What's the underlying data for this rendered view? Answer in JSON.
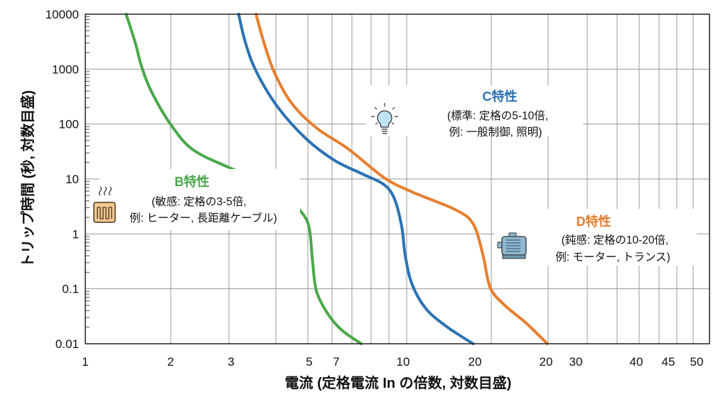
{
  "chart_data": {
    "type": "line",
    "xlabel": "電流 (定格電流 In の倍数, 対数目盛)",
    "ylabel": "トリップ時間 (秒, 対数目盛)",
    "x_scale": "log",
    "y_scale": "log",
    "ylim": [
      0.01,
      10000
    ],
    "xlim": [
      1,
      87
    ],
    "grid": true,
    "x_tick_labels": [
      "1",
      "2",
      "3",
      "5",
      "7",
      "10",
      "20",
      "20",
      "30",
      "40",
      "45",
      "50"
    ],
    "y_tick_labels": [
      "10000",
      "1000",
      "100",
      "10",
      "1",
      "0.1",
      "0.01"
    ],
    "y_ticks": [
      10000,
      1000,
      100,
      10,
      1,
      0.1,
      0.01
    ],
    "series": [
      {
        "name": "B特性",
        "color": "#4aa84a",
        "x": [
          1.34,
          1.43,
          1.5,
          1.61,
          1.84,
          2.15,
          2.77,
          3.57,
          4.16,
          4.73,
          4.98,
          5.1,
          5.24,
          5.65,
          6.26,
          7.22
        ],
        "y": [
          10000,
          3040,
          1070,
          380,
          100,
          35,
          16.6,
          9.1,
          5.0,
          2.4,
          1.24,
          0.3,
          0.091,
          0.037,
          0.018,
          0.01
        ]
      },
      {
        "name": "C特性",
        "color": "#2b72b4",
        "x": [
          3.0,
          3.15,
          3.4,
          3.96,
          4.85,
          5.95,
          7.29,
          8.5,
          9.17,
          9.66,
          9.9,
          10.4,
          11.5,
          13.4,
          16.1
        ],
        "y": [
          10000,
          3040,
          920,
          208,
          55,
          22,
          12.3,
          7.9,
          4.3,
          1.32,
          0.4,
          0.12,
          0.043,
          0.02,
          0.01
        ]
      },
      {
        "name": "D特性",
        "color": "#e67e2e",
        "x": [
          3.4,
          3.57,
          3.86,
          4.38,
          5.24,
          6.59,
          8.5,
          10.4,
          14.1,
          16.1,
          17.3,
          18.2,
          20.2,
          23.5,
          27.4
        ],
        "y": [
          10000,
          3520,
          920,
          242,
          85,
          35,
          10.6,
          5.8,
          2.8,
          1.53,
          0.4,
          0.105,
          0.05,
          0.024,
          0.01
        ]
      }
    ],
    "annotations": [
      {
        "title": "B特性",
        "line1": "(敏感: 定格の3-5倍,",
        "line2": "例: ヒーター, 長距離ケーブル)",
        "icon": "heater-icon",
        "color": "#4aa84a"
      },
      {
        "title": "C特性",
        "line1": "(標準: 定格の5-10倍,",
        "line2": "例: 一般制御, 照明)",
        "icon": "light-bulb-icon",
        "color": "#2b72b4"
      },
      {
        "title": "D特性",
        "line1": "(鈍感: 定格の10-20倍,",
        "line2": "例: モーター, トランス)",
        "icon": "motor-icon",
        "color": "#e67e2e"
      }
    ]
  }
}
